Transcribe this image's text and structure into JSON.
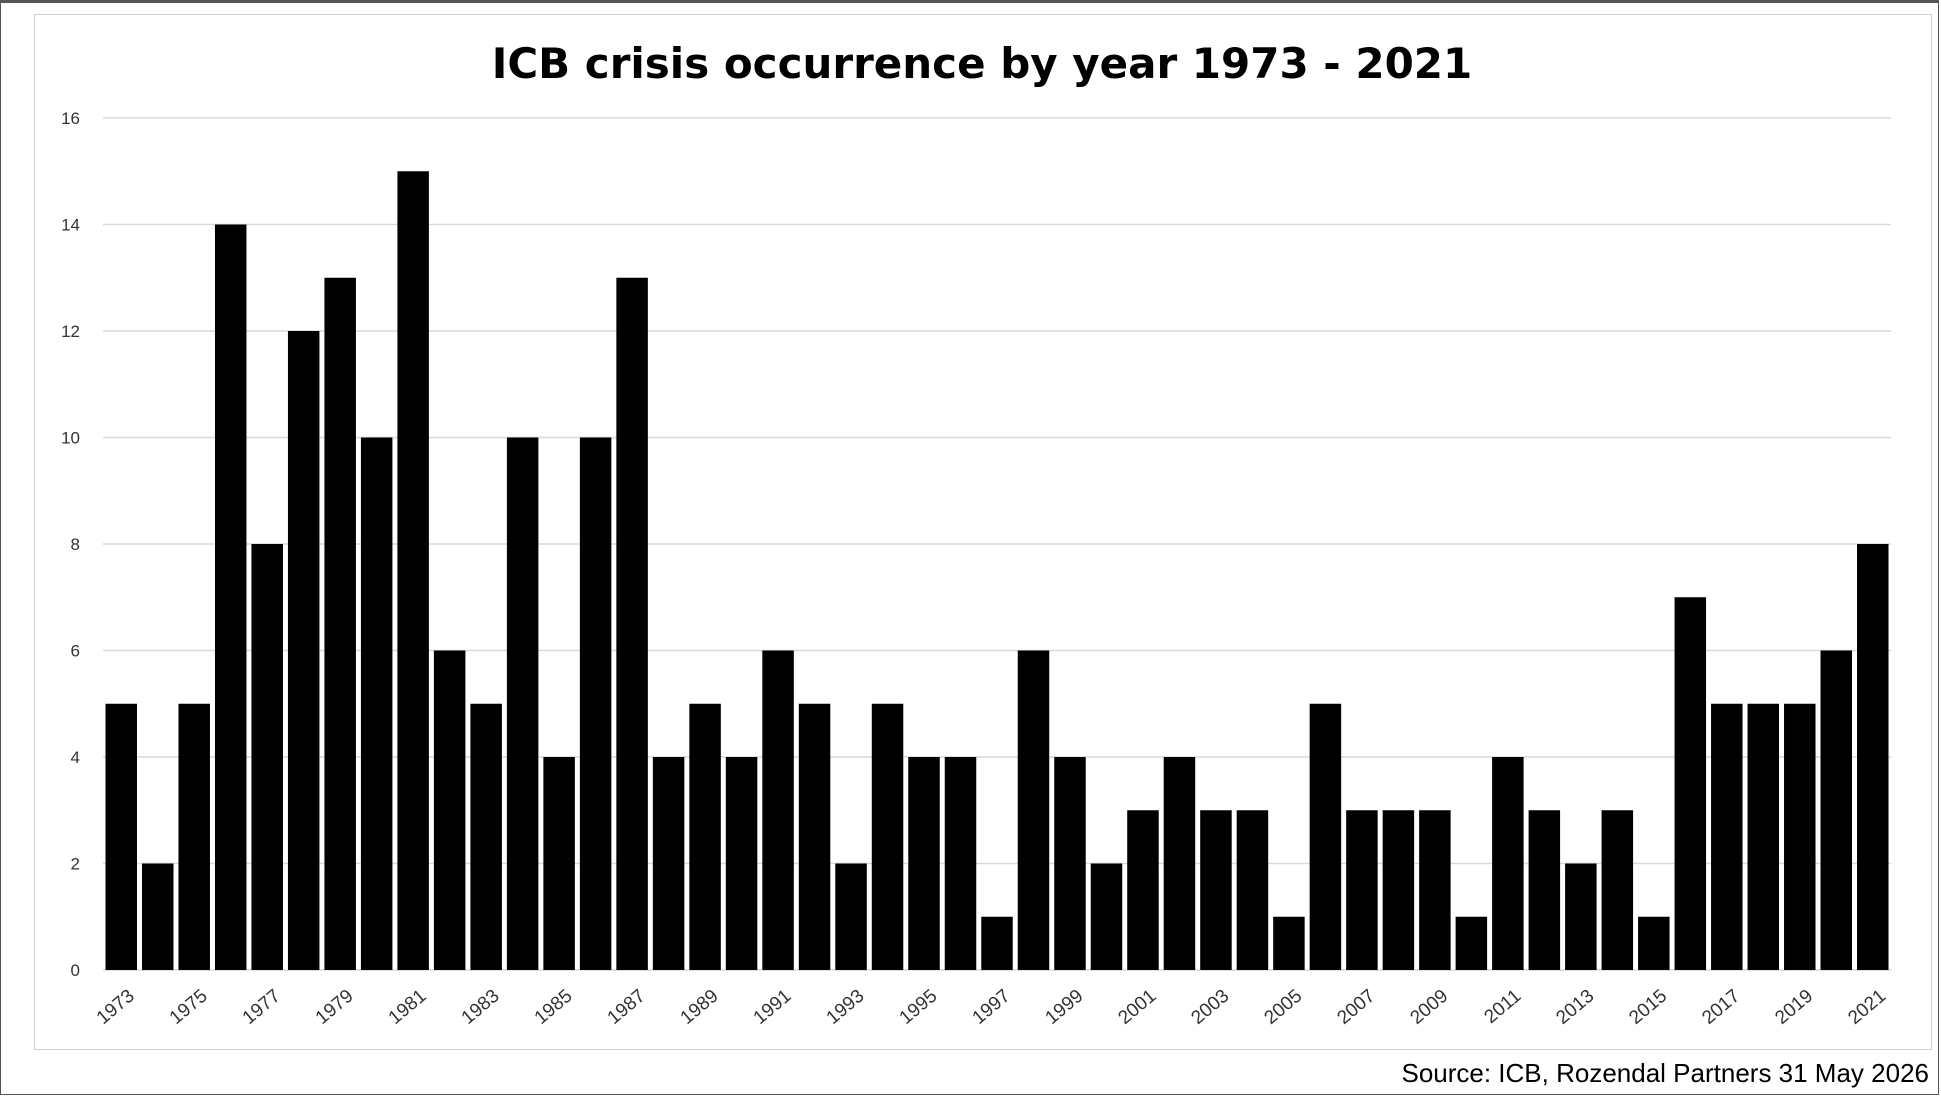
{
  "source_text": "Source: ICB, Rozendal Partners 31 May 2026",
  "chart_data": {
    "type": "bar",
    "title": "ICB crisis occurrence by year 1973 - 2021",
    "xlabel": "",
    "ylabel": "",
    "ylim": [
      0,
      16
    ],
    "yticks": [
      0,
      2,
      4,
      6,
      8,
      10,
      12,
      14,
      16
    ],
    "grid": true,
    "bar_color": "#000000",
    "categories": [
      "1973",
      "1974",
      "1975",
      "1976",
      "1977",
      "1978",
      "1979",
      "1980",
      "1981",
      "1982",
      "1983",
      "1984",
      "1985",
      "1986",
      "1987",
      "1988",
      "1989",
      "1990",
      "1991",
      "1992",
      "1993",
      "1994",
      "1995",
      "1996",
      "1997",
      "1998",
      "1999",
      "2000",
      "2001",
      "2002",
      "2003",
      "2004",
      "2005",
      "2006",
      "2007",
      "2008",
      "2009",
      "2010",
      "2011",
      "2012",
      "2013",
      "2014",
      "2015",
      "2016",
      "2017",
      "2018",
      "2019",
      "2020",
      "2021"
    ],
    "tick_labels": [
      "1973",
      "1975",
      "1977",
      "1979",
      "1981",
      "1983",
      "1985",
      "1987",
      "1989",
      "1991",
      "1993",
      "1995",
      "1997",
      "1999",
      "2001",
      "2003",
      "2005",
      "2007",
      "2009",
      "2011",
      "2013",
      "2015",
      "2017",
      "2019",
      "2021"
    ],
    "values": [
      5,
      2,
      5,
      14,
      8,
      12,
      13,
      10,
      15,
      6,
      5,
      10,
      4,
      10,
      13,
      4,
      5,
      4,
      6,
      5,
      2,
      5,
      4,
      4,
      1,
      6,
      4,
      2,
      3,
      4,
      3,
      3,
      1,
      5,
      3,
      3,
      3,
      1,
      4,
      3,
      2,
      3,
      1,
      7,
      5,
      5,
      5,
      6,
      8
    ]
  }
}
